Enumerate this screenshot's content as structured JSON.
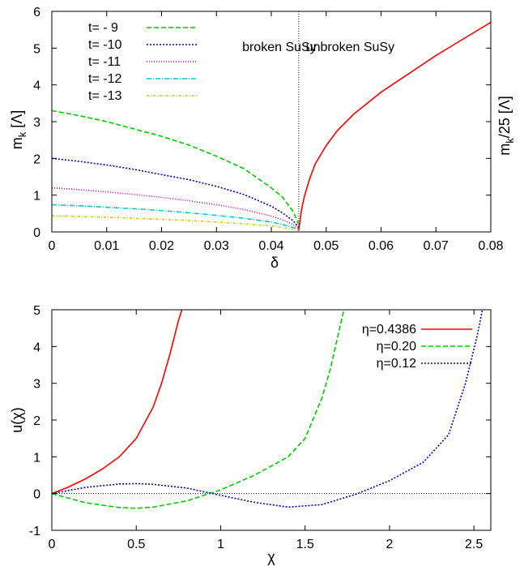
{
  "chart_data": [
    {
      "type": "line",
      "xlabel": "δ",
      "ylabel": "m_k [Λ]",
      "ylabel_right": "m_k/25 [Λ]",
      "xlim": [
        0,
        0.08
      ],
      "ylim": [
        0,
        6
      ],
      "xticks": [
        "0",
        "0.01",
        "0.02",
        "0.03",
        "0.04",
        "0.05",
        "0.06",
        "0.07",
        "0.08"
      ],
      "yticks": [
        "0",
        "1",
        "2",
        "3",
        "4",
        "5",
        "6"
      ],
      "legend_position": "top-left",
      "annotations": [
        {
          "text": "broken SuSy",
          "x": 0.0347
        },
        {
          "text": "unbroken SuSy",
          "x": 0.0463
        }
      ],
      "vertical_line_x": 0.045,
      "series": [
        {
          "name": "t= - 9",
          "color": "#00cc00",
          "dash": "6,3",
          "x": [
            0,
            0.005,
            0.01,
            0.015,
            0.02,
            0.025,
            0.03,
            0.035,
            0.04,
            0.042,
            0.044,
            0.045
          ],
          "y": [
            3.3,
            3.16,
            3.0,
            2.8,
            2.6,
            2.36,
            2.06,
            1.72,
            1.2,
            0.95,
            0.55,
            0.2
          ]
        },
        {
          "name": "t= -10",
          "color": "#0000cc",
          "dash": "2,2",
          "x": [
            0,
            0.005,
            0.01,
            0.015,
            0.02,
            0.025,
            0.03,
            0.035,
            0.04,
            0.042,
            0.044,
            0.045
          ],
          "y": [
            2.0,
            1.92,
            1.82,
            1.7,
            1.56,
            1.42,
            1.24,
            1.02,
            0.7,
            0.52,
            0.3,
            0.12
          ]
        },
        {
          "name": "t= -11",
          "color": "#cc00cc",
          "dash": "1,2",
          "x": [
            0,
            0.005,
            0.01,
            0.015,
            0.02,
            0.025,
            0.03,
            0.035,
            0.04,
            0.042,
            0.044,
            0.045
          ],
          "y": [
            1.2,
            1.15,
            1.09,
            1.02,
            0.94,
            0.85,
            0.74,
            0.61,
            0.43,
            0.33,
            0.2,
            0.1
          ]
        },
        {
          "name": "t= -12",
          "color": "#00cccc",
          "dash": "6,2,1,2",
          "x": [
            0,
            0.005,
            0.01,
            0.015,
            0.02,
            0.025,
            0.03,
            0.035,
            0.04,
            0.042,
            0.044,
            0.045
          ],
          "y": [
            0.74,
            0.71,
            0.67,
            0.63,
            0.58,
            0.52,
            0.45,
            0.37,
            0.27,
            0.2,
            0.12,
            0.08
          ]
        },
        {
          "name": "t= -13",
          "color": "#cccc00",
          "dash": "3,2,1,2",
          "x": [
            0,
            0.005,
            0.01,
            0.015,
            0.02,
            0.025,
            0.03,
            0.035,
            0.04,
            0.042,
            0.044,
            0.045
          ],
          "y": [
            0.44,
            0.42,
            0.4,
            0.37,
            0.34,
            0.31,
            0.27,
            0.22,
            0.16,
            0.12,
            0.08,
            0.05
          ]
        },
        {
          "color": "#ff0000",
          "dash": "",
          "x": [
            0.045,
            0.0455,
            0.046,
            0.047,
            0.048,
            0.05,
            0.052,
            0.055,
            0.06,
            0.065,
            0.07,
            0.075,
            0.08
          ],
          "y": [
            0.05,
            0.6,
            0.95,
            1.45,
            1.85,
            2.35,
            2.75,
            3.2,
            3.8,
            4.3,
            4.8,
            5.25,
            5.7
          ]
        }
      ]
    },
    {
      "type": "line",
      "xlabel": "χ",
      "ylabel": "u(χ)",
      "xlim": [
        0,
        2.6
      ],
      "ylim": [
        -1,
        5
      ],
      "xticks": [
        "0",
        "0.5",
        "1",
        "1.5",
        "2",
        "2.5"
      ],
      "yticks": [
        "-1",
        "0",
        "1",
        "2",
        "3",
        "4",
        "5"
      ],
      "legend_position": "top-right",
      "zero_line": true,
      "series": [
        {
          "name": "η=0.4386",
          "color": "#ff0000",
          "dash": "",
          "x": [
            0,
            0.1,
            0.2,
            0.3,
            0.4,
            0.5,
            0.6,
            0.65,
            0.7,
            0.75,
            0.77
          ],
          "y": [
            0,
            0.18,
            0.4,
            0.67,
            1.0,
            1.5,
            2.35,
            3.0,
            3.8,
            4.7,
            5.0
          ]
        },
        {
          "name": "η=0.20",
          "color": "#00cc00",
          "dash": "6,3",
          "x": [
            0,
            0.2,
            0.4,
            0.5,
            0.6,
            0.8,
            1.0,
            1.2,
            1.4,
            1.5,
            1.6,
            1.65,
            1.7,
            1.73
          ],
          "y": [
            0,
            -0.25,
            -0.38,
            -0.4,
            -0.37,
            -0.2,
            0.1,
            0.5,
            1.0,
            1.5,
            2.6,
            3.4,
            4.4,
            5.0
          ]
        },
        {
          "name": "η=0.12",
          "color": "#0000cc",
          "dash": "2,2",
          "x": [
            0,
            0.2,
            0.4,
            0.5,
            0.6,
            0.8,
            1.0,
            1.2,
            1.4,
            1.6,
            1.8,
            2.0,
            2.2,
            2.35,
            2.45,
            2.52,
            2.55
          ],
          "y": [
            0,
            0.17,
            0.26,
            0.27,
            0.25,
            0.15,
            -0.05,
            -0.24,
            -0.37,
            -0.3,
            -0.02,
            0.35,
            0.85,
            1.6,
            3.0,
            4.3,
            5.0
          ]
        }
      ]
    }
  ]
}
